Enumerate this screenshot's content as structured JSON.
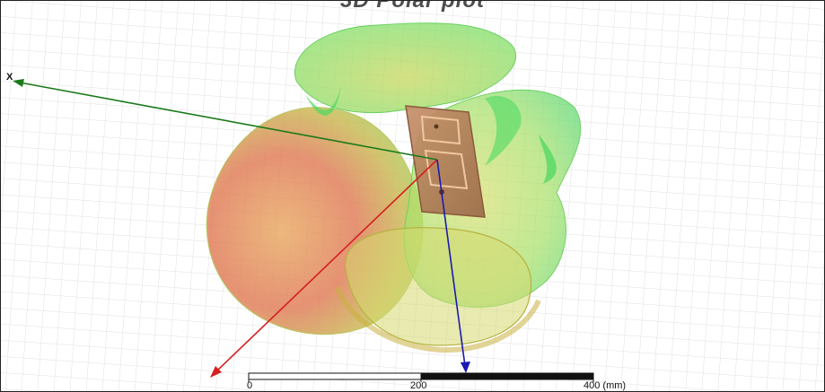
{
  "title": "3D Polar plot",
  "axes": {
    "x_label": "X"
  },
  "scale_bar": {
    "ticks": [
      "0",
      "200",
      "400 (mm)"
    ]
  },
  "colors": {
    "x_axis": "#1a7a1a",
    "y_axis": "#d42020",
    "z_axis": "#1a1ab0",
    "pattern_high": "#e05a3a",
    "pattern_mid": "#c8c84a",
    "pattern_low": "#5ed85e",
    "antenna_board": "#b07a50"
  },
  "icons": {
    "x_arrow": "arrowhead-icon",
    "y_arrow": "arrowhead-icon",
    "z_arrow": "arrowhead-icon"
  }
}
